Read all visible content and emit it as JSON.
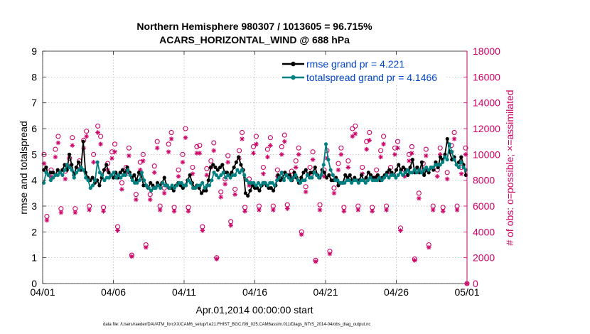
{
  "chart_data": {
    "type": "line",
    "title": "Northern Hemisphere 980307 / 1013605 = 96.715%",
    "subtitle": "ACARS_HORIZONTAL_WIND @ 688 hPa",
    "xlabel": "Apr.01,2014 00:00:00 start",
    "ylabel": "rmse and totalspread",
    "y2label": "# of obs: o=possible; ×=assimilated",
    "footer": "data file: /Users/raeder/DAI/ATM_forcXX/CAM6_setup/f.e21.FHIST_BGC.f09_025.CAM6assim.011/Diags_NTrS_2014-04/obs_diag_output.nc",
    "xlim": [
      0,
      30
    ],
    "ylim": [
      0,
      9
    ],
    "y2lim": [
      0,
      18000
    ],
    "x_ticks": [
      0,
      5,
      10,
      15,
      20,
      25,
      30
    ],
    "x_tick_labels": [
      "04/01",
      "04/06",
      "04/11",
      "04/16",
      "04/21",
      "04/26",
      "05/01"
    ],
    "y_ticks": [
      0,
      1,
      2,
      3,
      4,
      5,
      6,
      7,
      8,
      9
    ],
    "y_tick_labels": [
      "0",
      "1",
      "2",
      "3",
      "4",
      "5",
      "6",
      "7",
      "8",
      "9"
    ],
    "y2_ticks": [
      0,
      2000,
      4000,
      6000,
      8000,
      10000,
      12000,
      14000,
      16000,
      18000
    ],
    "y2_tick_labels": [
      "0",
      "2000",
      "4000",
      "6000",
      "8000",
      "10000",
      "12000",
      "14000",
      "16000",
      "18000"
    ],
    "grid": true,
    "legend_position": "top-right",
    "colors": {
      "rmse": "#000000",
      "spread": "#008080",
      "obs": "#cc0066"
    },
    "series": [
      {
        "name": "rmse grand pr = 4.221",
        "axis": "left",
        "values": [
          4.4,
          4.5,
          4.2,
          4.3,
          4.3,
          4.2,
          4.4,
          4.3,
          4.4,
          4.6,
          4.4,
          5.0,
          4.6,
          4.2,
          4.5,
          4.7,
          4.4,
          5.5,
          4.3,
          4.1,
          4.0,
          4.1,
          3.9,
          4.0,
          3.8,
          4.1,
          4.4,
          4.6,
          4.3,
          4.2,
          4.1,
          4.3,
          4.1,
          4.3,
          4.4,
          4.3,
          4.5,
          4.3,
          4.1,
          4.2,
          4.0,
          4.3,
          4.2,
          3.8,
          3.8,
          3.7,
          3.9,
          3.8,
          3.7,
          3.9,
          3.8,
          3.9,
          4.1,
          3.8,
          3.7,
          3.7,
          3.6,
          3.8,
          3.9,
          3.8,
          3.7,
          3.8,
          4.0,
          4.2,
          3.9,
          3.7,
          3.8,
          3.7,
          3.5,
          3.6,
          3.6,
          4.0,
          4.5,
          4.6,
          4.5,
          4.4,
          4.5,
          4.6,
          4.3,
          4.3,
          4.2,
          4.3,
          4.5,
          4.7,
          4.9,
          4.6,
          4.4,
          3.5,
          3.4,
          3.6,
          3.8,
          3.7,
          3.7,
          3.6,
          3.8,
          3.9,
          3.8,
          3.7,
          3.7,
          3.6,
          3.8,
          4.2,
          4.0,
          4.1,
          4.3,
          4.2,
          4.2,
          4.0,
          4.3,
          4.1,
          3.9,
          4.1,
          4.3,
          4.4,
          4.2,
          4.3,
          4.3,
          4.5,
          4.2,
          4.1,
          4.4,
          4.3,
          4.1,
          4.2,
          4.0,
          4.0,
          4.1,
          3.8,
          3.9,
          3.9,
          4.2,
          4.1,
          4.2,
          4.0,
          4.1,
          4.0,
          4.0,
          4.2,
          4.0,
          4.1,
          4.3,
          4.2,
          4.1,
          4.1,
          4.2,
          4.0,
          4.1,
          4.2,
          4.3,
          4.4,
          4.3,
          4.2,
          4.4,
          4.6,
          4.4,
          4.5,
          4.4,
          4.2,
          4.5,
          4.8,
          4.3,
          4.5,
          4.3,
          4.7,
          4.2,
          4.4,
          4.3,
          4.5,
          4.4,
          4.7,
          4.5,
          4.9,
          4.8,
          5.0,
          5.6,
          5.1,
          4.8,
          4.9,
          4.6,
          4.7,
          4.9,
          4.6,
          4.2
        ]
      },
      {
        "name": "totalspread grand pr = 4.1466",
        "axis": "left",
        "values": [
          3.9,
          4.3,
          4.2,
          4.0,
          4.1,
          4.2,
          4.2,
          4.3,
          4.2,
          4.4,
          4.6,
          4.5,
          4.4,
          4.1,
          4.3,
          4.4,
          4.5,
          4.4,
          4.1,
          4.0,
          3.7,
          3.8,
          4.0,
          4.7,
          4.3,
          4.2,
          4.0,
          4.1,
          4.1,
          4.2,
          4.3,
          4.1,
          4.2,
          4.1,
          4.2,
          4.2,
          4.4,
          4.2,
          4.0,
          3.9,
          3.9,
          4.0,
          4.3,
          4.0,
          3.8,
          3.7,
          3.6,
          3.7,
          3.7,
          3.8,
          3.7,
          3.9,
          3.8,
          3.8,
          3.7,
          3.8,
          3.7,
          3.8,
          3.9,
          3.9,
          3.8,
          3.8,
          4.0,
          3.9,
          3.7,
          3.7,
          3.8,
          3.8,
          3.9,
          3.7,
          3.8,
          3.8,
          4.0,
          4.3,
          4.2,
          4.1,
          4.2,
          4.3,
          4.1,
          4.2,
          4.1,
          4.2,
          4.2,
          4.4,
          4.3,
          4.4,
          4.2,
          4.0,
          3.9,
          3.9,
          3.9,
          3.8,
          3.9,
          3.8,
          3.9,
          3.9,
          3.8,
          3.9,
          3.9,
          3.8,
          4.0,
          4.1,
          4.3,
          4.0,
          4.2,
          4.1,
          4.0,
          4.1,
          4.2,
          4.0,
          3.9,
          4.0,
          4.0,
          4.2,
          4.1,
          4.1,
          4.3,
          4.2,
          4.1,
          4.2,
          4.6,
          5.4,
          4.8,
          4.4,
          4.2,
          4.0,
          4.0,
          3.9,
          3.9,
          3.9,
          4.0,
          4.0,
          3.9,
          4.0,
          4.0,
          3.9,
          4.0,
          4.0,
          3.9,
          4.0,
          4.1,
          4.0,
          4.0,
          4.0,
          4.1,
          4.0,
          4.1,
          4.2,
          4.1,
          4.2,
          4.2,
          4.1,
          4.2,
          4.3,
          4.2,
          4.3,
          4.4,
          4.3,
          4.3,
          4.4,
          4.3,
          4.4,
          4.3,
          4.4,
          4.5,
          4.4,
          4.5,
          4.5,
          4.6,
          4.6,
          4.6,
          4.7,
          4.9,
          4.8,
          5.4,
          5.1,
          4.8,
          4.6,
          4.5,
          4.7,
          4.5,
          4.4
        ]
      },
      {
        "name": "possible observations",
        "axis": "right",
        "marker": "o",
        "x": [
          0.1,
          0.3,
          0.6,
          0.9,
          1.1,
          1.3,
          1.6,
          1.9,
          2.1,
          2.3,
          2.6,
          2.9,
          3.1,
          3.3,
          3.6,
          3.9,
          4.1,
          4.3,
          4.6,
          4.9,
          5.1,
          5.3,
          5.6,
          5.9,
          6.1,
          6.3,
          6.6,
          6.9,
          7.1,
          7.3,
          7.6,
          7.9,
          8.1,
          8.3,
          8.6,
          8.9,
          9.1,
          9.3,
          9.6,
          9.9,
          10.1,
          10.3,
          10.6,
          10.9,
          11.1,
          11.3,
          11.6,
          11.9,
          12.1,
          12.3,
          12.6,
          12.9,
          13.1,
          13.3,
          13.6,
          13.9,
          14.1,
          14.3,
          14.6,
          14.9,
          15.1,
          15.3,
          15.6,
          15.9,
          16.1,
          16.3,
          16.6,
          16.9,
          17.1,
          17.3,
          17.6,
          17.9,
          18.1,
          18.3,
          18.6,
          18.9,
          19.1,
          19.3,
          19.6,
          19.9,
          20.1,
          20.3,
          20.6,
          20.9,
          21.1,
          21.3,
          21.6,
          21.9,
          22.1,
          22.3,
          22.6,
          22.9,
          23.1,
          23.3,
          23.6,
          23.9,
          24.1,
          24.3,
          24.6,
          24.9,
          25.1,
          25.3,
          25.6,
          25.9,
          26.1,
          26.3,
          26.6,
          26.9,
          27.1,
          27.3,
          27.6,
          27.9,
          28.1,
          28.3,
          28.6,
          28.9,
          29.1,
          29.3,
          29.6,
          29.9,
          30.0
        ],
        "values": [
          10000,
          5200,
          8800,
          10400,
          11400,
          5800,
          8700,
          9700,
          11300,
          5800,
          9500,
          11100,
          11800,
          6000,
          10000,
          12200,
          11400,
          5900,
          9300,
          10200,
          10800,
          4400,
          7800,
          9000,
          10500,
          2200,
          6900,
          9400,
          10000,
          3000,
          6900,
          9100,
          11000,
          6000,
          7400,
          10800,
          11700,
          5900,
          8800,
          10000,
          12000,
          5900,
          9000,
          10600,
          10700,
          4400,
          8900,
          9500,
          10900,
          2000,
          7100,
          8100,
          9900,
          4800,
          7300,
          10300,
          11700,
          5900,
          8100,
          10600,
          11400,
          6000,
          9000,
          10400,
          11300,
          6000,
          8800,
          10600,
          11500,
          6100,
          8700,
          9500,
          10500,
          4000,
          7500,
          9000,
          10200,
          1800,
          6100,
          8800,
          10300,
          2500,
          7400,
          9300,
          10500,
          5900,
          9500,
          12000,
          12200,
          6000,
          9000,
          11000,
          11700,
          5900,
          8800,
          10300,
          11400,
          6000,
          9000,
          10500,
          11000,
          4300,
          8800,
          10000,
          10600,
          1900,
          7000,
          9300,
          10400,
          3000,
          6000,
          8800,
          10500,
          5900,
          8600,
          10700,
          11700,
          6000,
          9000,
          10500,
          0
        ]
      },
      {
        "name": "assimilated observations",
        "axis": "right",
        "marker": "x",
        "x": [
          0.1,
          0.3,
          0.6,
          0.9,
          1.1,
          1.3,
          1.6,
          1.9,
          2.1,
          2.3,
          2.6,
          2.9,
          3.1,
          3.3,
          3.6,
          3.9,
          4.1,
          4.3,
          4.6,
          4.9,
          5.1,
          5.3,
          5.6,
          5.9,
          6.1,
          6.3,
          6.6,
          6.9,
          7.1,
          7.3,
          7.6,
          7.9,
          8.1,
          8.3,
          8.6,
          8.9,
          9.1,
          9.3,
          9.6,
          9.9,
          10.1,
          10.3,
          10.6,
          10.9,
          11.1,
          11.3,
          11.6,
          11.9,
          12.1,
          12.3,
          12.6,
          12.9,
          13.1,
          13.3,
          13.6,
          13.9,
          14.1,
          14.3,
          14.6,
          14.9,
          15.1,
          15.3,
          15.6,
          15.9,
          16.1,
          16.3,
          16.6,
          16.9,
          17.1,
          17.3,
          17.6,
          17.9,
          18.1,
          18.3,
          18.6,
          18.9,
          19.1,
          19.3,
          19.6,
          19.9,
          20.1,
          20.3,
          20.6,
          20.9,
          21.1,
          21.3,
          21.6,
          21.9,
          22.1,
          22.3,
          22.6,
          22.9,
          23.1,
          23.3,
          23.6,
          23.9,
          24.1,
          24.3,
          24.6,
          24.9,
          25.1,
          25.3,
          25.6,
          25.9,
          26.1,
          26.3,
          26.6,
          26.9,
          27.1,
          27.3,
          27.6,
          27.9,
          28.1,
          28.3,
          28.6,
          28.9,
          29.1,
          29.3,
          29.6,
          29.9,
          30.0
        ],
        "values": [
          9300,
          4900,
          8300,
          9800,
          10900,
          5500,
          8100,
          9100,
          10700,
          5500,
          8900,
          10500,
          11400,
          5700,
          9400,
          11700,
          10800,
          5600,
          8800,
          9700,
          10200,
          4100,
          7300,
          8500,
          9900,
          2100,
          6500,
          8800,
          9500,
          2800,
          6500,
          8600,
          10500,
          5700,
          7000,
          10200,
          11200,
          5600,
          8300,
          9400,
          11300,
          5600,
          8500,
          10100,
          10100,
          4100,
          8400,
          9000,
          10300,
          1900,
          6700,
          7700,
          9400,
          4500,
          6900,
          9700,
          11200,
          5600,
          7600,
          10100,
          10800,
          5700,
          8500,
          9800,
          10700,
          5700,
          8300,
          10000,
          11000,
          5800,
          8200,
          9000,
          10000,
          3800,
          7100,
          8500,
          9600,
          1700,
          5700,
          8300,
          9700,
          2300,
          7000,
          8800,
          10000,
          5600,
          9000,
          11400,
          11600,
          5700,
          8500,
          10400,
          11100,
          5600,
          8300,
          9800,
          10800,
          5700,
          8500,
          10000,
          10500,
          4100,
          8300,
          9500,
          10100,
          1800,
          6600,
          8800,
          9900,
          2800,
          5700,
          8300,
          10000,
          5600,
          8100,
          10200,
          11200,
          5700,
          8500,
          10000,
          0
        ]
      }
    ]
  }
}
